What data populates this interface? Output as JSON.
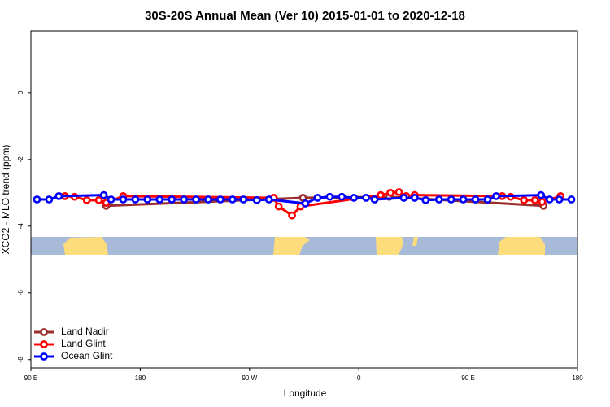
{
  "chart_data": {
    "type": "line",
    "title": "30S-20S Annual Mean (Ver 10)   2015-01-01 to 2020-12-18",
    "x_label": "Longitude",
    "y_label": "XCO2 - MLO trend (ppm)",
    "xlim": [
      90,
      540
    ],
    "ylim": [
      -8.25,
      1.85
    ],
    "xticks": [
      {
        "value": 90,
        "label": "90 E"
      },
      180,
      {
        "value": 270,
        "label": "90 W"
      },
      {
        "value": 360,
        "label": "0"
      },
      {
        "value": 450,
        "label": "90 E"
      },
      {
        "value": 540,
        "label": "180"
      }
    ],
    "yticks": [
      0,
      -2,
      -4,
      -6,
      -8
    ],
    "legend": "bottom-left",
    "series": [
      {
        "name": "Land Nadir",
        "color": "#9b2d2d",
        "x": [
          152,
          314,
          385,
          512
        ],
        "values": [
          -3.39,
          -3.15,
          -3.12,
          -3.39
        ]
      },
      {
        "name": "Land Glint",
        "color": "#ff0000",
        "x": [
          118,
          126,
          136,
          146,
          152,
          166,
          290,
          294,
          305,
          312,
          378,
          386,
          393,
          399,
          406,
          478,
          485,
          496,
          505,
          511,
          526
        ],
        "values": [
          -3.1,
          -3.12,
          -3.22,
          -3.22,
          -3.3,
          -3.1,
          -3.15,
          -3.41,
          -3.68,
          -3.41,
          -3.07,
          -3.0,
          -2.98,
          -3.1,
          -3.07,
          -3.1,
          -3.12,
          -3.22,
          -3.22,
          -3.27,
          -3.1
        ]
      },
      {
        "name": "Ocean Glint",
        "color": "#0000ff",
        "x": [
          95,
          105,
          113,
          150,
          156,
          166,
          176,
          186,
          196,
          206,
          216,
          226,
          236,
          246,
          256,
          265,
          276,
          286,
          316,
          326,
          336,
          346,
          356,
          366,
          373,
          397,
          406,
          415,
          426,
          436,
          446,
          456,
          466,
          473,
          510,
          517,
          525,
          535
        ],
        "values": [
          -3.2,
          -3.2,
          -3.1,
          -3.07,
          -3.2,
          -3.2,
          -3.2,
          -3.2,
          -3.2,
          -3.2,
          -3.2,
          -3.2,
          -3.2,
          -3.2,
          -3.2,
          -3.2,
          -3.22,
          -3.2,
          -3.32,
          -3.15,
          -3.12,
          -3.12,
          -3.15,
          -3.15,
          -3.2,
          -3.15,
          -3.15,
          -3.22,
          -3.2,
          -3.2,
          -3.2,
          -3.2,
          -3.2,
          -3.1,
          -3.07,
          -3.2,
          -3.2,
          -3.2
        ]
      }
    ]
  }
}
